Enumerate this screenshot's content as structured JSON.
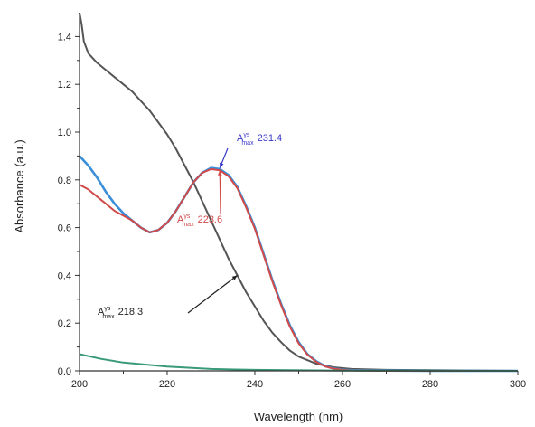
{
  "chart_data": {
    "type": "line",
    "xlabel": "Wavelength (nm)",
    "ylabel": "Absorbance (a.u.)",
    "xlim": [
      200,
      300
    ],
    "ylim": [
      0,
      1.5
    ],
    "xticks": [
      200,
      220,
      240,
      260,
      280,
      300
    ],
    "yticks": [
      0.0,
      0.2,
      0.4,
      0.6,
      0.8,
      1.0,
      1.2,
      1.4
    ],
    "xtick_labels": [
      "200",
      "220",
      "240",
      "260",
      "280",
      "300"
    ],
    "ytick_labels": [
      "0.0",
      "0.2",
      "0.4",
      "0.6",
      "0.8",
      "1.0",
      "1.2",
      "1.4"
    ],
    "grid": false,
    "series": [
      {
        "color": "#555555",
        "x": [
          200,
          200.5,
          201,
          202,
          204,
          206,
          208,
          210,
          212,
          214,
          216,
          218,
          220,
          222,
          224,
          226,
          228,
          230,
          232,
          234,
          236,
          238,
          240,
          242,
          244,
          246,
          248,
          250,
          254,
          258,
          262,
          270,
          300
        ],
        "y": [
          1.5,
          1.45,
          1.38,
          1.33,
          1.29,
          1.26,
          1.23,
          1.2,
          1.17,
          1.13,
          1.09,
          1.04,
          0.99,
          0.93,
          0.86,
          0.79,
          0.71,
          0.63,
          0.55,
          0.47,
          0.4,
          0.33,
          0.27,
          0.21,
          0.16,
          0.12,
          0.085,
          0.06,
          0.03,
          0.015,
          0.008,
          0.004,
          0.0
        ]
      },
      {
        "color": "#3a8fd8",
        "x": [
          200,
          202,
          204,
          206,
          208,
          210,
          212,
          214,
          216,
          218,
          220,
          222,
          224,
          226,
          228,
          230,
          232,
          234,
          236,
          238,
          240,
          242,
          244,
          246,
          248,
          250,
          252,
          254,
          256,
          258,
          260,
          262,
          266,
          270,
          280,
          300
        ],
        "y": [
          0.9,
          0.86,
          0.81,
          0.75,
          0.7,
          0.66,
          0.63,
          0.6,
          0.58,
          0.59,
          0.62,
          0.67,
          0.73,
          0.79,
          0.83,
          0.85,
          0.845,
          0.82,
          0.77,
          0.69,
          0.6,
          0.49,
          0.38,
          0.28,
          0.19,
          0.12,
          0.07,
          0.04,
          0.02,
          0.01,
          0.005,
          0.003,
          0.002,
          0.001,
          0.0,
          0.0
        ]
      },
      {
        "color": "#d04a4a",
        "x": [
          200,
          202,
          204,
          206,
          208,
          210,
          212,
          214,
          216,
          218,
          220,
          222,
          224,
          226,
          228,
          230,
          232,
          234,
          236,
          238,
          240,
          242,
          244,
          246,
          248,
          250,
          252,
          254,
          256,
          258,
          260,
          262,
          266,
          270,
          280,
          300
        ],
        "y": [
          0.78,
          0.76,
          0.73,
          0.7,
          0.67,
          0.65,
          0.63,
          0.6,
          0.58,
          0.59,
          0.62,
          0.67,
          0.73,
          0.79,
          0.83,
          0.845,
          0.84,
          0.815,
          0.765,
          0.685,
          0.595,
          0.485,
          0.375,
          0.275,
          0.185,
          0.115,
          0.068,
          0.038,
          0.019,
          0.009,
          0.004,
          0.002,
          0.001,
          0.0,
          0.0,
          0.0
        ]
      },
      {
        "color": "#3a9a78",
        "x": [
          200,
          205,
          210,
          220,
          230,
          240,
          260,
          300
        ],
        "y": [
          0.07,
          0.05,
          0.035,
          0.018,
          0.008,
          0.004,
          0.001,
          0.0
        ]
      }
    ],
    "annotations": [
      {
        "label_main": "A",
        "label_sup": "γs",
        "label_sub": "max",
        "value": "231.4",
        "color": "#3a3ac8",
        "target_x": 232,
        "target_y": 0.85
      },
      {
        "label_main": "A",
        "label_sup": "γs",
        "label_sub": "max",
        "value": "223.6",
        "color": "#d04a4a",
        "target_x": 232,
        "target_y": 0.84
      },
      {
        "label_main": "A",
        "label_sup": "γs",
        "label_sub": "max",
        "value": "218.3",
        "color": "#222222",
        "target_x": 236,
        "target_y": 0.4
      }
    ]
  }
}
